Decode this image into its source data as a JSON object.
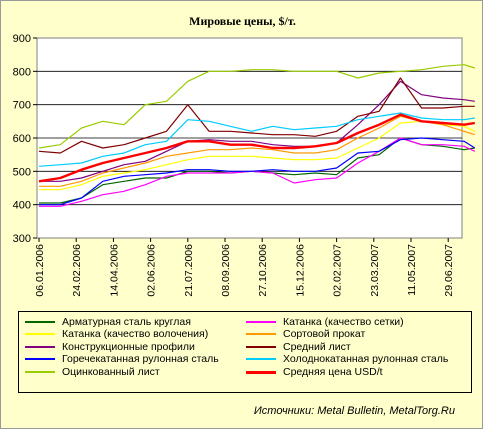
{
  "chart_data": {
    "type": "line",
    "title": "Мировые цены, $/т.",
    "ylim": [
      300,
      900
    ],
    "yticks": [
      300,
      400,
      500,
      600,
      700,
      800,
      900
    ],
    "grid": true,
    "legend_position": "bottom",
    "x_tick_labels": [
      "06.01.2006",
      "24.02.2006",
      "14.04.2006",
      "02.06.2006",
      "21.07.2006",
      "08.09.2006",
      "27.10.2006",
      "15.12.2006",
      "02.02.2007",
      "23.03.2007",
      "11.05.2007",
      "29.06.2007"
    ],
    "x": [
      "2006-01-06",
      "2006-02-03",
      "2006-03-03",
      "2006-03-31",
      "2006-04-28",
      "2006-05-26",
      "2006-06-23",
      "2006-07-21",
      "2006-08-18",
      "2006-09-15",
      "2006-10-13",
      "2006-11-10",
      "2006-12-08",
      "2007-01-05",
      "2007-02-02",
      "2007-03-02",
      "2007-03-30",
      "2007-04-27",
      "2007-05-25",
      "2007-06-22",
      "2007-07-20",
      "2007-08-03"
    ],
    "series": [
      {
        "name": "Арматурная сталь круглая",
        "color": "#006600",
        "width": 1.2,
        "values": [
          405,
          405,
          420,
          460,
          470,
          480,
          480,
          500,
          500,
          495,
          500,
          495,
          490,
          495,
          490,
          540,
          550,
          600,
          580,
          575,
          565,
          570
        ]
      },
      {
        "name": "Катанка (качество сетки)",
        "color": "#ff00ff",
        "width": 1.2,
        "values": [
          395,
          395,
          410,
          430,
          440,
          460,
          485,
          495,
          495,
          495,
          500,
          495,
          465,
          475,
          480,
          525,
          560,
          600,
          580,
          580,
          575,
          560
        ]
      },
      {
        "name": "Катанка (качество волочения)",
        "color": "#ffff00",
        "width": 1.2,
        "values": [
          445,
          445,
          460,
          485,
          495,
          505,
          520,
          535,
          545,
          545,
          545,
          540,
          535,
          535,
          540,
          570,
          600,
          645,
          650,
          640,
          635,
          620
        ]
      },
      {
        "name": "Сортовой прокат",
        "color": "#ff9900",
        "width": 1.2,
        "values": [
          455,
          455,
          470,
          495,
          510,
          525,
          545,
          555,
          565,
          565,
          570,
          565,
          555,
          555,
          565,
          600,
          630,
          665,
          650,
          640,
          620,
          610
        ]
      },
      {
        "name": "Конструкционные профили",
        "color": "#800080",
        "width": 1.2,
        "values": [
          470,
          470,
          480,
          500,
          520,
          530,
          560,
          590,
          595,
          590,
          590,
          580,
          575,
          575,
          585,
          640,
          700,
          770,
          730,
          720,
          715,
          710
        ]
      },
      {
        "name": "Средний лист",
        "color": "#800000",
        "width": 1.2,
        "values": [
          560,
          555,
          590,
          570,
          580,
          600,
          620,
          700,
          620,
          620,
          615,
          610,
          610,
          605,
          620,
          665,
          680,
          780,
          690,
          690,
          695,
          695
        ]
      },
      {
        "name": "Горечекатанная рулонная сталь",
        "color": "#0000ff",
        "width": 1.2,
        "values": [
          400,
          400,
          420,
          470,
          485,
          490,
          495,
          505,
          505,
          500,
          500,
          505,
          500,
          500,
          510,
          555,
          560,
          595,
          600,
          595,
          590,
          570
        ]
      },
      {
        "name": "Холоднокатанная рулонная сталь",
        "color": "#00ccff",
        "width": 1.2,
        "values": [
          515,
          520,
          525,
          545,
          555,
          580,
          590,
          655,
          650,
          635,
          620,
          635,
          625,
          630,
          635,
          655,
          665,
          675,
          660,
          655,
          655,
          660
        ]
      },
      {
        "name": "Оцинкованный лист",
        "color": "#99cc00",
        "width": 1.2,
        "values": [
          570,
          580,
          630,
          650,
          640,
          700,
          710,
          770,
          800,
          800,
          805,
          805,
          800,
          800,
          800,
          780,
          795,
          800,
          805,
          815,
          820,
          810
        ]
      },
      {
        "name": "Средняя цена USD/t",
        "color": "#ff0000",
        "width": 2.4,
        "values": [
          470,
          480,
          505,
          525,
          540,
          555,
          570,
          590,
          590,
          580,
          580,
          570,
          570,
          575,
          585,
          615,
          640,
          670,
          650,
          645,
          640,
          645
        ]
      }
    ]
  },
  "source_text": "Источники: Metal Bulletin, MetalTorg.Ru"
}
